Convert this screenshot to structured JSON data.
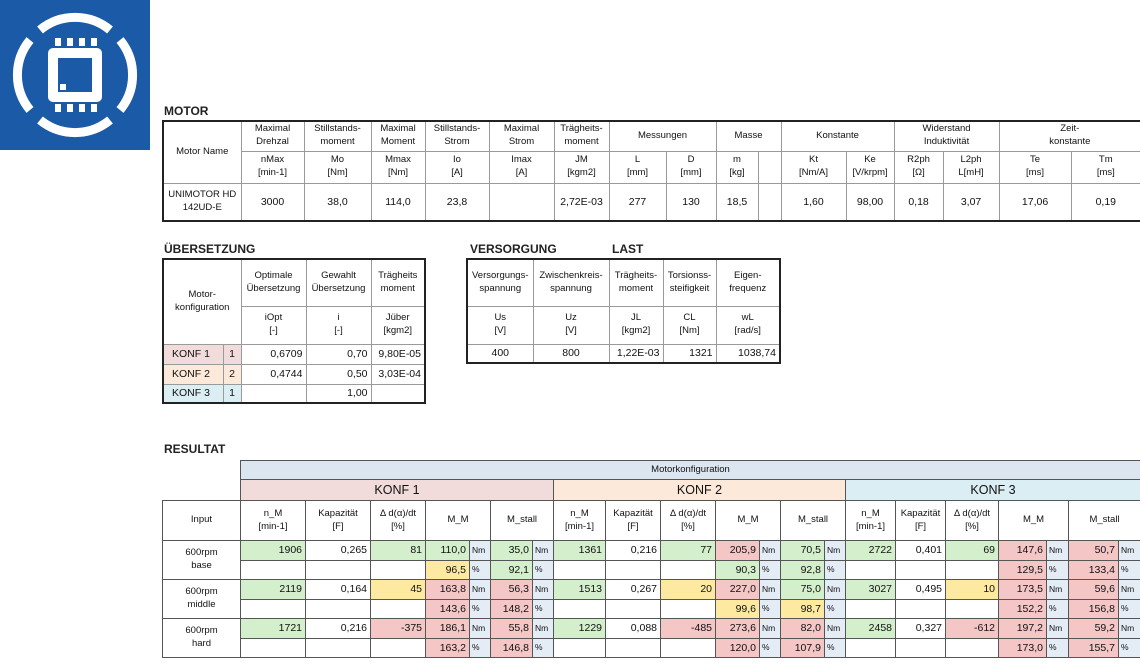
{
  "motor": {
    "title": "MOTOR",
    "group_headers": [
      "Motor Name",
      "Maximal\nDrehzal",
      "Stillstands-\nmoment",
      "Maximal\nMoment",
      "Stillstands-\nStrom",
      "Maximal\nStrom",
      "Trägheits-\nmoment",
      "Messungen",
      "Masse",
      "Konstante",
      "Widerstand\nInduktivität",
      "Zeit-\nkonstante"
    ],
    "headers": [
      "nMax\n[min-1]",
      "Mo\n[Nm]",
      "Mmax\n[Nm]",
      "Io\n[A]",
      "Imax\n[A]",
      "JM\n[kgm2]",
      "L\n[mm]",
      "D\n[mm]",
      "m\n[kg]",
      null,
      "Kt\n[Nm/A]",
      "Ke\n[V/krpm]",
      "R2ph\n[Ω]",
      "L2ph\nL[mH]",
      "Te\n[ms]",
      "Tm\n[ms]"
    ],
    "row": [
      "UNIMOTOR HD\n142UD-E",
      "3000",
      "38,0",
      "114,0",
      "23,8",
      null,
      "2,72E-03",
      "277",
      "130",
      "18,5",
      null,
      "1,60",
      "98,00",
      "0,18",
      "3,07",
      "17,06",
      "0,19"
    ]
  },
  "uebersetzung": {
    "title": "ÜBERSETZUNG",
    "corner": "Motor-\nkonfiguration",
    "headers": [
      "Optimale\nÜbersetzung",
      "Gewahlt\nÜbersetzung",
      "Trägheits\nmoment"
    ],
    "units": [
      "iOpt\n[-]",
      "i\n[-]",
      "Jüber\n[kgm2]"
    ],
    "rows": [
      [
        "KONF 1",
        "1",
        "0,6709",
        "0,70",
        "9,80E-05"
      ],
      [
        "KONF 2",
        "2",
        "0,4744",
        "0,50",
        "3,03E-04"
      ],
      [
        "KONF 3",
        "1",
        null,
        "1,00",
        null
      ]
    ]
  },
  "versorgung": {
    "title": "VERSORGUNG",
    "title2": "LAST",
    "headers": [
      "Versorgungs-\nspannung",
      "Zwischenkreis-\nspannung",
      "Trägheits-\nmoment",
      "Torsionss-\nsteifigkeit",
      "Eigen-\nfrequenz"
    ],
    "units": [
      "Us\n[V]",
      "Uz\n[V]",
      "JL\n[kgm2]",
      "CL\n[Nm]",
      "wL\n[rad/s]"
    ],
    "row": [
      "400",
      "800",
      "1,22E-03",
      "1321",
      "1038,74"
    ]
  },
  "resultat": {
    "title": "RESULTAT",
    "group": "Motorkonfiguration",
    "configs": [
      "KONF 1",
      "KONF 2",
      "KONF 3"
    ],
    "input_header": "Input",
    "headers": [
      "n_M\n[min-1]",
      "Kapazität\n[F]",
      "Δ d(α)/dt\n[%]",
      "M_M",
      "M_stall"
    ],
    "rows": [
      {
        "input": "600rpm\nbase",
        "a": [
          "1906",
          "0,265",
          "81",
          "110,0",
          "Nm",
          "35,0",
          "Nm",
          "1361",
          "0,216",
          "77",
          "205,9",
          "Nm",
          "70,5",
          "Nm",
          "2722",
          "0,401",
          "69",
          "147,6",
          "Nm",
          "50,7",
          "Nm"
        ],
        "b": [
          "96,5",
          "%",
          "92,1",
          "%",
          "90,3",
          "%",
          "92,8",
          "%",
          "129,5",
          "%",
          "133,4",
          "%"
        ]
      },
      {
        "input": "600rpm\nmiddle",
        "a": [
          "2119",
          "0,164",
          "45",
          "163,8",
          "Nm",
          "56,3",
          "Nm",
          "1513",
          "0,267",
          "20",
          "227,0",
          "Nm",
          "75,0",
          "Nm",
          "3027",
          "0,495",
          "10",
          "173,5",
          "Nm",
          "59,6",
          "Nm"
        ],
        "b": [
          "143,6",
          "%",
          "148,2",
          "%",
          "99,6",
          "%",
          "98,7",
          "%",
          "152,2",
          "%",
          "156,8",
          "%"
        ]
      },
      {
        "input": "600rpm\nhard",
        "a": [
          "1721",
          "0,216",
          "-375",
          "186,1",
          "Nm",
          "55,8",
          "Nm",
          "1229",
          "0,088",
          "-485",
          "273,6",
          "Nm",
          "82,0",
          "Nm",
          "2458",
          "0,327",
          "-612",
          "197,2",
          "Nm",
          "59,2",
          "Nm"
        ],
        "b": [
          "163,2",
          "%",
          "146,8",
          "%",
          "120,0",
          "%",
          "107,9",
          "%",
          "173,0",
          "%",
          "155,7",
          "%"
        ]
      }
    ]
  }
}
